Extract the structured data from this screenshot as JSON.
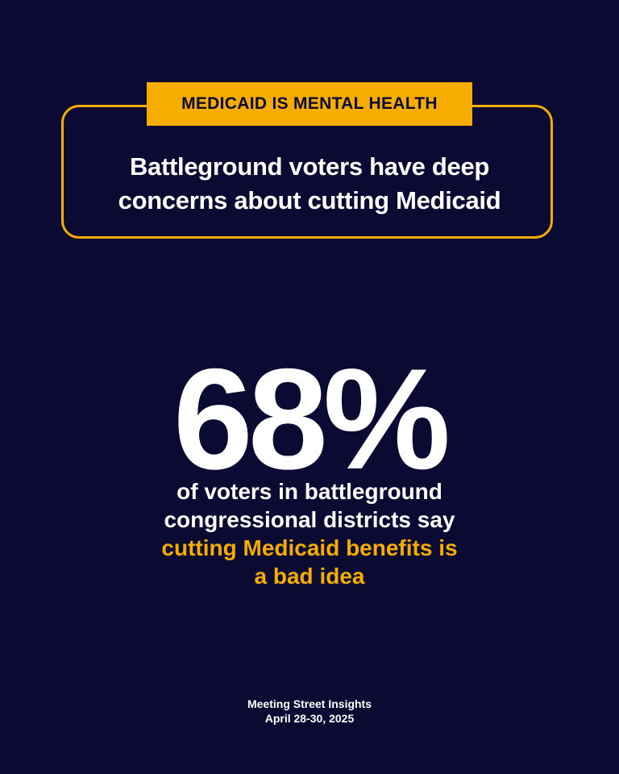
{
  "tag": "MEDICAID IS MENTAL HEALTH",
  "headline": {
    "line1": "Battleground voters have deep",
    "line2": "concerns about cutting Medicaid"
  },
  "stat": "68%",
  "description": {
    "line1": "of voters in battleground",
    "line2": "congressional districts say",
    "highlight1": "cutting Medicaid benefits is",
    "highlight2": "a bad idea"
  },
  "source": {
    "name": "Meeting Street Insights",
    "date": "April 28-30, 2025"
  },
  "colors": {
    "background": "#0a0a33",
    "accent": "#f6ad00",
    "text": "#ffffff"
  }
}
